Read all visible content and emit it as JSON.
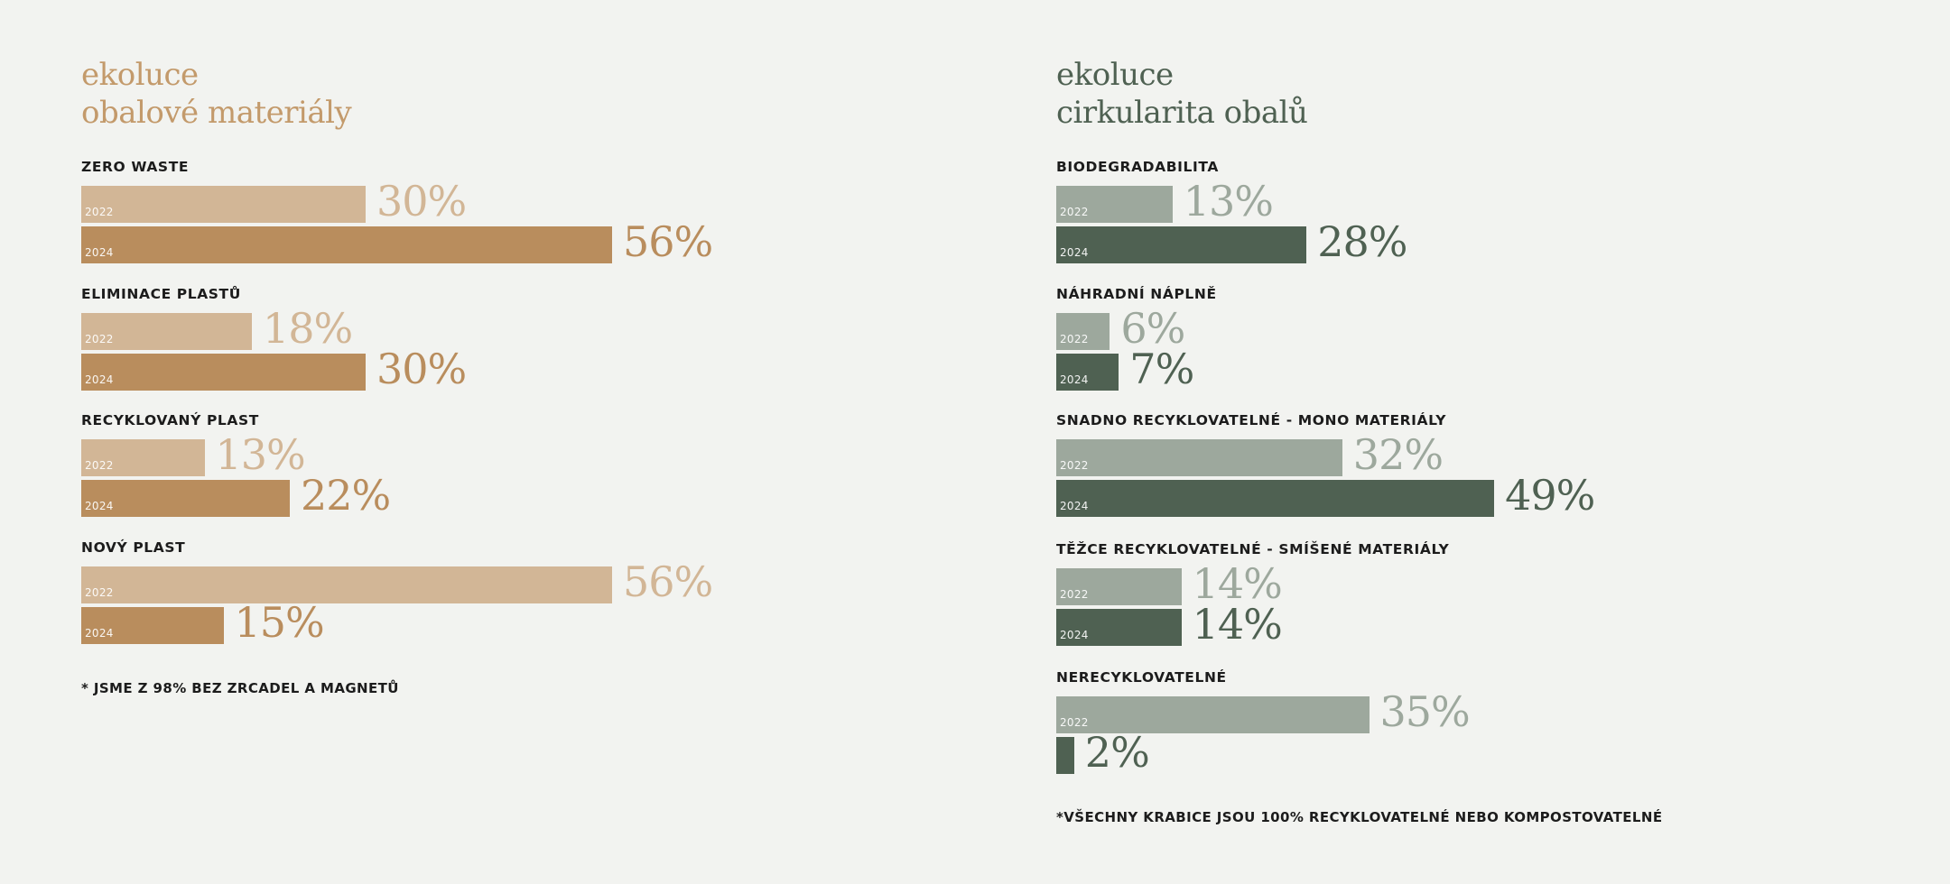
{
  "chart_data": [
    {
      "type": "bar",
      "orientation": "horizontal",
      "title": [
        "ekoluce",
        "obalové materiály"
      ],
      "unit": "%",
      "colors": {
        "title": "#c39a6b",
        "2022": "#d2b696",
        "2024": "#b98d5d",
        "value_2022": "#d2b696",
        "value_2024": "#b98d5d"
      },
      "series_labels": [
        "2022",
        "2024"
      ],
      "groups": [
        {
          "label": "ZERO WASTE",
          "values": [
            30,
            56
          ],
          "value_labels": [
            "30%",
            "56%"
          ],
          "year_labels": [
            "2022",
            "2024"
          ]
        },
        {
          "label": "ELIMINACE PLASTŮ",
          "values": [
            18,
            30
          ],
          "value_labels": [
            "18%",
            "30%"
          ],
          "year_labels": [
            "2022",
            "2024"
          ]
        },
        {
          "label": "RECYKLOVANÝ PLAST",
          "values": [
            13,
            22
          ],
          "value_labels": [
            "13%",
            "22%"
          ],
          "year_labels": [
            "2022",
            "2024"
          ]
        },
        {
          "label": "NOVÝ PLAST",
          "values": [
            56,
            15
          ],
          "value_labels": [
            "56%",
            "15%"
          ],
          "year_labels": [
            "2022",
            "2024"
          ]
        }
      ],
      "footnote": "* JSME Z 98% BEZ ZRCADEL A MAGNETŮ"
    },
    {
      "type": "bar",
      "orientation": "horizontal",
      "title": [
        "ekoluce",
        "cirkularita obalů"
      ],
      "unit": "%",
      "colors": {
        "title": "#4f6152",
        "2022": "#9da89d",
        "2024": "#4f6152",
        "value_2022": "#9da89d",
        "value_2024": "#4f6152"
      },
      "series_labels": [
        "2022",
        "2024"
      ],
      "groups": [
        {
          "label": "BIODEGRADABILITA",
          "values": [
            13,
            28
          ],
          "value_labels": [
            "13%",
            "28%"
          ],
          "year_labels": [
            "2022",
            "2024"
          ]
        },
        {
          "label": "NÁHRADNÍ NÁPLNĚ",
          "values": [
            6,
            7
          ],
          "value_labels": [
            "6%",
            "7%"
          ],
          "year_labels": [
            "2022",
            "2024"
          ]
        },
        {
          "label": "SNADNO RECYKLOVATELNÉ - MONO MATERIÁLY",
          "values": [
            32,
            49
          ],
          "value_labels": [
            "32%",
            "49%"
          ],
          "year_labels": [
            "2022",
            "2024"
          ]
        },
        {
          "label": "TĚŽCE RECYKLOVATELNÉ - SMÍŠENÉ MATERIÁLY",
          "values": [
            14,
            14
          ],
          "value_labels": [
            "14%",
            "14%"
          ],
          "year_labels": [
            "2022",
            "2024"
          ]
        },
        {
          "label": "NERECYKLOVATELNÉ",
          "values": [
            35,
            2
          ],
          "value_labels": [
            "35%",
            "2%"
          ],
          "year_labels": [
            "2022",
            ""
          ]
        }
      ],
      "footnote": "*VŠECHNY KRABICE JSOU 100% RECYKLOVATELNÉ NEBO KOMPOSTOVATELNÉ"
    }
  ]
}
